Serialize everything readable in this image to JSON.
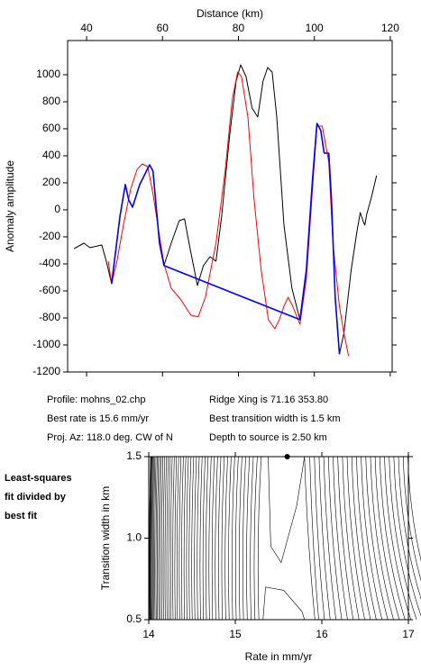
{
  "chart_data": [
    {
      "type": "line",
      "xlabel": "Distance (km)",
      "ylabel": "Anomaly amplitude",
      "xlim": [
        35,
        120.5
      ],
      "xticks": [
        40,
        60,
        80,
        100,
        120
      ],
      "ylim": [
        -1200,
        1253
      ],
      "yticks": [
        -1200,
        -1000,
        -800,
        -600,
        -400,
        -200,
        0,
        200,
        400,
        600,
        800,
        1000
      ],
      "series": [
        {
          "color": "#000000",
          "x": [
            36.7,
            39.3,
            40.9,
            44.0,
            45.2,
            46.6,
            48.8,
            50.2,
            51.1,
            52.1,
            54.0,
            56.6,
            57.5,
            59.2,
            60.4,
            62.3,
            64.4,
            65.8,
            67.0,
            69.2,
            70.8,
            72.5,
            74.1,
            75.6,
            77.7,
            79.4,
            80.6,
            82.0,
            83.6,
            85.1,
            86.5,
            87.7,
            88.9,
            90.1,
            92.0,
            94.1,
            96.2,
            97.9,
            99.5,
            100.7,
            101.7,
            102.6,
            103.8,
            104.5,
            105.5,
            106.6,
            107.8,
            109.7,
            111.2,
            112.1,
            112.8,
            113.3,
            113.8,
            115.0,
            116.4
          ],
          "values": [
            -287,
            -247,
            -280,
            -260,
            -380,
            -547,
            -47,
            187,
            73,
            20,
            187,
            333,
            287,
            -247,
            -413,
            -247,
            -80,
            -67,
            -247,
            -560,
            -413,
            -347,
            -380,
            -47,
            553,
            953,
            1073,
            987,
            753,
            687,
            953,
            1053,
            1020,
            687,
            -113,
            -580,
            -813,
            -447,
            220,
            640,
            587,
            420,
            420,
            87,
            -647,
            -1067,
            -913,
            -447,
            -167,
            -20,
            -80,
            -113,
            -33,
            87,
            253
          ]
        },
        {
          "color": "#ff0000",
          "x": [
            45.7,
            46.6,
            48.0,
            49.7,
            51.6,
            53.3,
            54.7,
            56.1,
            57.5,
            59.2,
            60.4,
            62.3,
            64.7,
            67.5,
            69.4,
            71.3,
            74.1,
            76.5,
            78.4,
            79.8,
            80.8,
            82.5,
            84.1,
            86.0,
            87.9,
            89.6,
            90.8,
            92.0,
            93.1,
            94.3,
            96.2,
            97.9,
            99.5,
            100.7,
            102.1,
            103.8,
            104.9,
            106.6,
            107.8,
            109.0
          ],
          "values": [
            -380,
            -547,
            -380,
            -113,
            153,
            300,
            340,
            320,
            120,
            -193,
            -400,
            -580,
            -660,
            -780,
            -793,
            -647,
            -247,
            287,
            820,
            1020,
            987,
            687,
            87,
            -447,
            -813,
            -880,
            -813,
            -713,
            -647,
            -713,
            -847,
            -513,
            153,
            620,
            620,
            353,
            -247,
            -713,
            -913,
            -1080
          ]
        },
        {
          "color": "#0000ff",
          "x": [
            46.6,
            48.8,
            50.2,
            51.1,
            52.1,
            54.0,
            56.6,
            57.5,
            59.2,
            60.4,
            96.2,
            97.9,
            99.5,
            100.7,
            101.7,
            102.6,
            103.8,
            104.5,
            105.5,
            106.6
          ],
          "values": [
            -547,
            -47,
            187,
            73,
            20,
            187,
            333,
            287,
            -247,
            -413,
            -813,
            -447,
            220,
            640,
            587,
            420,
            420,
            87,
            -647,
            -1067
          ]
        }
      ]
    },
    {
      "type": "contour",
      "xlabel": "Rate in mm/yr",
      "ylabel": "Transition width in km",
      "xlim": [
        14,
        17
      ],
      "xticks": [
        14,
        15,
        16,
        17
      ],
      "ylim": [
        0.5,
        1.5
      ],
      "yticks": [
        {
          "value": 0.5,
          "label": "0.5"
        },
        {
          "value": 1.0,
          "label": "1.0"
        },
        {
          "value": 1.5,
          "label": "1.5"
        }
      ],
      "best_fit": {
        "x": 15.6,
        "y": 1.5
      }
    }
  ],
  "panel": {
    "left": [
      "Profile: mohns_02.chp",
      "Best rate is 15.6 mm/yr",
      "Proj. Az: 118.0 deg. CW of N"
    ],
    "right": [
      "Ridge Xing is 71.16 353.80",
      "Best transition width is 1.5 km",
      "Depth to source is   2.50 km"
    ]
  },
  "side_label": [
    "Least-squares",
    "fit divided by",
    "best fit"
  ]
}
